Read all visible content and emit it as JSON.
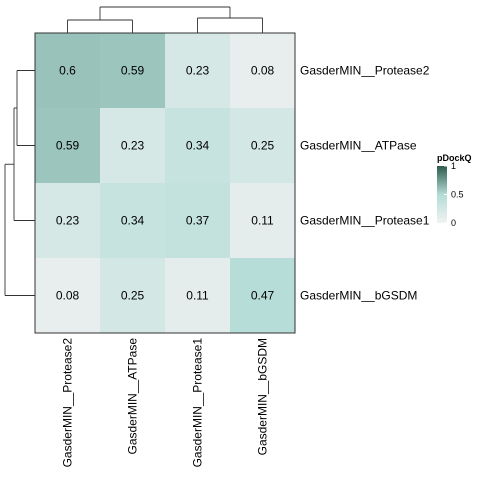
{
  "chart_data": {
    "type": "heatmap",
    "rows": [
      "GasderMIN__Protease2",
      "GasderMIN__ATPase",
      "GasderMIN__Protease1",
      "GasderMIN__bGSDM"
    ],
    "columns": [
      "GasderMIN__Protease2",
      "GasderMIN__ATPase",
      "GasderMIN__Protease1",
      "GasderMIN__bGSDM"
    ],
    "values": [
      [
        0.6,
        0.59,
        0.23,
        0.08
      ],
      [
        0.59,
        0.23,
        0.34,
        0.25
      ],
      [
        0.23,
        0.34,
        0.37,
        0.11
      ],
      [
        0.08,
        0.25,
        0.11,
        0.47
      ]
    ],
    "value_labels": [
      [
        "0.6",
        "0.59",
        "0.23",
        "0.08"
      ],
      [
        "0.59",
        "0.23",
        "0.34",
        "0.25"
      ],
      [
        "0.23",
        "0.34",
        "0.37",
        "0.11"
      ],
      [
        "0.08",
        "0.25",
        "0.11",
        "0.47"
      ]
    ],
    "legend": {
      "title": "pDockQ",
      "ticks": [
        "1",
        "0.5",
        "0"
      ],
      "tick_values": [
        1,
        0.5,
        0
      ],
      "placement": "right"
    },
    "colors": {
      "low": "#f2f2f2",
      "mid": "#b3dcd6",
      "high": "#2d5a4b",
      "dendrogram": "#333333",
      "border": "#333333"
    },
    "dendrogram": {
      "row": true,
      "column": true
    }
  }
}
